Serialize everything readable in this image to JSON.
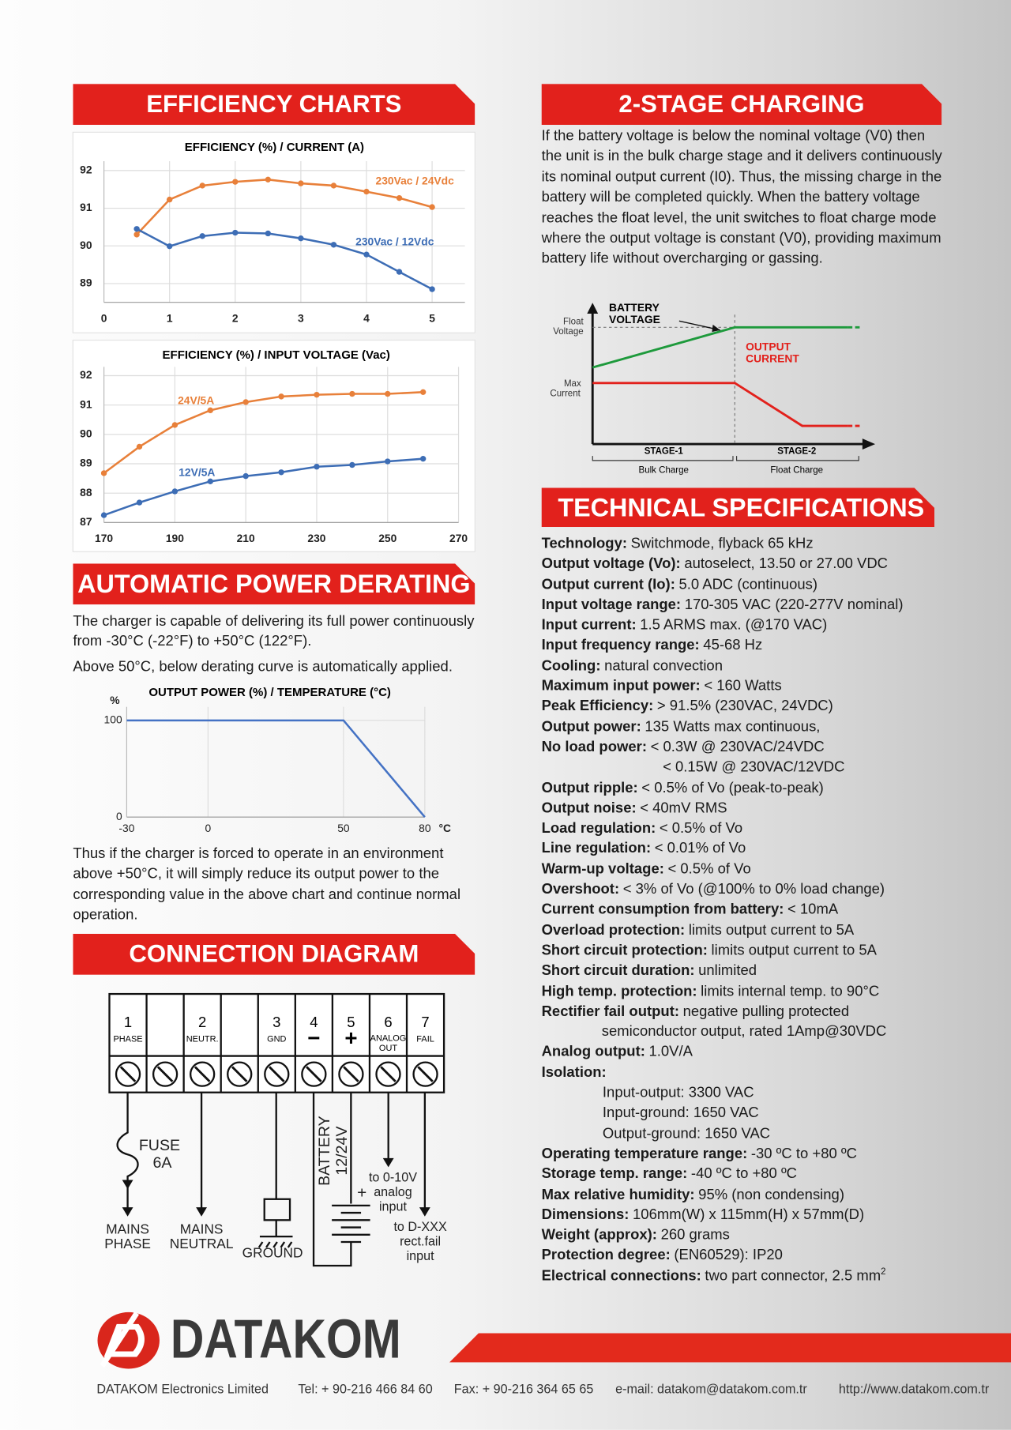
{
  "headings": {
    "efficiency": "EFFICIENCY CHARTS",
    "derating": "AUTOMATIC POWER DERATING",
    "connection": "CONNECTION DIAGRAM",
    "charging": "2-STAGE CHARGING",
    "specs": "TECHNICAL SPECIFICATIONS"
  },
  "chart_data": [
    {
      "type": "line",
      "title": "EFFICIENCY (%) / CURRENT (A)",
      "x": [
        0.5,
        1,
        1.5,
        2,
        2.5,
        3,
        3.5,
        4,
        4.5,
        5
      ],
      "series": [
        {
          "name": "230Vac / 24Vdc",
          "color": "#e8803a",
          "values": [
            90.3,
            91.23,
            91.6,
            91.7,
            91.76,
            91.66,
            91.6,
            91.44,
            91.27,
            91.03
          ]
        },
        {
          "name": "230Vac / 12Vdc",
          "color": "#3d6db5",
          "values": [
            90.45,
            89.99,
            90.26,
            90.35,
            90.33,
            90.2,
            90.03,
            89.77,
            89.31,
            88.85
          ]
        }
      ],
      "xlim": [
        0,
        5.5
      ],
      "xticks": [
        0,
        1,
        2,
        3,
        4,
        5
      ],
      "ylim": [
        88.5,
        92.25
      ],
      "yticks": [
        89,
        90,
        91,
        92
      ],
      "grid": true,
      "markers": true
    },
    {
      "type": "line",
      "title": "EFFICIENCY (%) / INPUT VOLTAGE (Vac)",
      "x": [
        170,
        180,
        190,
        200,
        210,
        220,
        230,
        240,
        250,
        260
      ],
      "series": [
        {
          "name": "24V/5A",
          "color": "#e8803a",
          "values": [
            88.68,
            89.58,
            90.32,
            90.82,
            91.1,
            91.29,
            91.35,
            91.38,
            91.38,
            91.44
          ]
        },
        {
          "name": "12V/5A",
          "color": "#3d6db5",
          "values": [
            87.25,
            87.68,
            88.06,
            88.4,
            88.58,
            88.71,
            88.9,
            88.96,
            89.08,
            89.17
          ]
        }
      ],
      "xlim": [
        170,
        270
      ],
      "xticks": [
        170,
        190,
        210,
        230,
        250,
        270
      ],
      "ylim": [
        87,
        92.3
      ],
      "yticks": [
        87,
        88,
        89,
        90,
        91,
        92
      ],
      "grid": true,
      "markers": true
    },
    {
      "type": "line",
      "title": "OUTPUT POWER (%) / TEMPERATURE (°C)",
      "x": [
        -30,
        50,
        80
      ],
      "values": [
        100,
        100,
        0
      ],
      "color": "#4472c4",
      "xlim": [
        -30,
        80
      ],
      "xticks": [
        -30,
        0,
        50,
        80
      ],
      "ylim": [
        0,
        114
      ],
      "yticks": [
        0,
        100
      ],
      "y_unit": "%",
      "x_unit": "°C",
      "grid": true,
      "markers": false
    }
  ],
  "derating_text": [
    "The charger is capable of delivering its full power continuously from -30°C (-22°F) to +50°C (122°F).",
    "Above 50°C, below derating curve is automatically applied.",
    "Thus if the charger is forced to operate in an environment above +50°C, it will simply reduce its output power to the corresponding value in the above chart and continue normal operation."
  ],
  "charging_text": "If the battery voltage is below the nominal voltage (V0) then the unit is in the bulk charge stage and it delivers continuously its nominal output current (I0). Thus, the missing charge in the battery will be completed quickly. When the battery voltage reaches the float level, the unit switches to float charge mode where the output voltage is constant (V0), providing maximum battery life without overcharging or gassing.",
  "charging_diagram": {
    "y_label": [
      "BATTERY",
      "VOLTAGE"
    ],
    "float_label": [
      "Float",
      "Voltage"
    ],
    "max_label": [
      "Max",
      "Current"
    ],
    "current_label": [
      "OUTPUT",
      "CURRENT"
    ],
    "stages": [
      {
        "name": "STAGE-1",
        "mode": "Bulk Charge"
      },
      {
        "name": "STAGE-2",
        "mode": "Float Charge"
      }
    ]
  },
  "connection_diagram": {
    "terminals": [
      {
        "number": "1",
        "label": [
          "PHASE"
        ]
      },
      {
        "number": "2",
        "label": [
          "NEUTR."
        ]
      },
      {
        "number": "3",
        "label": [
          "GND"
        ]
      },
      {
        "number": "4",
        "label": [
          "−"
        ]
      },
      {
        "number": "5",
        "label": [
          "+"
        ]
      },
      {
        "number": "6",
        "label": [
          "ANALOG",
          "OUT"
        ]
      },
      {
        "number": "7",
        "label": [
          "FAIL"
        ]
      }
    ],
    "fuse": [
      "FUSE",
      "6A"
    ],
    "mains_phase": [
      "MAINS",
      "PHASE"
    ],
    "mains_neutral": [
      "MAINS",
      "NEUTRAL"
    ],
    "ground": "GROUND",
    "battery": [
      "BATTERY",
      "12/24V"
    ],
    "battery_plus": "+",
    "analog": [
      "to 0-10V",
      "analog",
      "input"
    ],
    "fail": [
      "to D-XXX",
      "rect.fail",
      "input"
    ]
  },
  "specs": [
    {
      "label": "Technology:",
      "value": "Switchmode, flyback 65 kHz"
    },
    {
      "label": "Output voltage (Vo):",
      "value": "autoselect, 13.50 or 27.00 VDC"
    },
    {
      "label": "Output current (Io):",
      "value": "5.0 ADC (continuous)"
    },
    {
      "label": "Input voltage range:",
      "value": "170-305 VAC (220-277V nominal)"
    },
    {
      "label": "Input current:",
      "value": "1.5 ARMS max. (@170 VAC)"
    },
    {
      "label": "Input frequency range:",
      "value": "45-68 Hz"
    },
    {
      "label": "Cooling:",
      "value": "natural convection"
    },
    {
      "label": "Maximum input power:",
      "value": "< 160 Watts"
    },
    {
      "label": "Peak Efficiency:",
      "value": "> 91.5% (230VAC, 24VDC)"
    },
    {
      "label": "Output power:",
      "value": "135 Watts max continuous,"
    },
    {
      "label": "No load power:",
      "value": "< 0.3W @ 230VAC/24VDC",
      "lines": [
        "< 0.15W @ 230VAC/12VDC"
      ]
    },
    {
      "label": "Output ripple:",
      "value": "< 0.5% of Vo (peak-to-peak)"
    },
    {
      "label": "Output noise:",
      "value": "< 40mV RMS"
    },
    {
      "label": "Load regulation:",
      "value": "< 0.5% of Vo"
    },
    {
      "label": "Line regulation:",
      "value": "< 0.01% of Vo"
    },
    {
      "label": "Warm-up voltage:",
      "value": "< 0.5% of Vo"
    },
    {
      "label": "Overshoot:",
      "value": "< 3% of Vo (@100% to 0% load change)"
    },
    {
      "label": "Current consumption from battery:",
      "value": "< 10mA"
    },
    {
      "label": "Overload protection:",
      "value": "limits output current to 5A"
    },
    {
      "label": "Short circuit protection:",
      "value": "limits output current to 5A"
    },
    {
      "label": "Short circuit duration:",
      "value": "unlimited"
    },
    {
      "label": "High temp. protection:",
      "value": "limits internal temp. to 90°C"
    },
    {
      "label": "Rectifier fail output:",
      "value": "negative pulling protected",
      "lines": [
        "semiconductor output, rated 1Amp@30VDC"
      ]
    },
    {
      "label": "Analog output:",
      "value": "1.0V/A"
    },
    {
      "label": "Isolation:",
      "lines": [
        "Input-output: 3300 VAC",
        "Input-ground: 1650 VAC",
        "Output-ground: 1650 VAC"
      ]
    },
    {
      "label": "Operating temperature range:",
      "value": "-30 ºC to +80 ºC"
    },
    {
      "label": "Storage temp. range:",
      "value": "-40 ºC to +80 ºC"
    },
    {
      "label": "Max relative humidity:",
      "value": "95% (non condensing)"
    },
    {
      "label": "Dimensions:",
      "value": "106mm(W) x 115mm(H) x 57mm(D)"
    },
    {
      "label": "Weight (approx):",
      "value": "260 grams"
    },
    {
      "label": "Protection degree:",
      "value": "(EN60529): IP20"
    },
    {
      "label": "Electrical connections:",
      "value": "two part connector, 2.5 mm",
      "sup": "2"
    }
  ],
  "footer": {
    "logo": "DATAKOM",
    "contacts": [
      "DATAKOM Electronics Limited",
      "Tel: + 90-216 466 84 60",
      "Fax: + 90-216 364 65 65",
      "e-mail: datakom@datakom.com.tr",
      "http://www.datakom.com.tr"
    ]
  }
}
